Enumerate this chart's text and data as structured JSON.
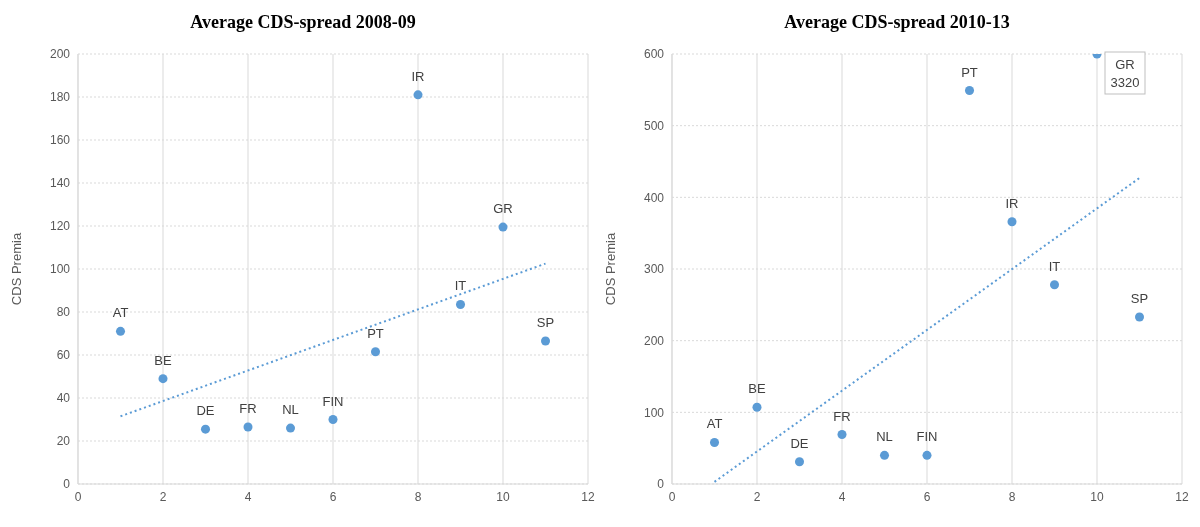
{
  "chart_data": [
    {
      "type": "scatter",
      "title": "Average CDS-spread 2008-09",
      "ylabel": "CDS Premia",
      "xlim": [
        0,
        12
      ],
      "xticks": [
        0,
        2,
        4,
        6,
        8,
        10,
        12
      ],
      "ylim": [
        0,
        200
      ],
      "yticks": [
        0,
        20,
        40,
        60,
        80,
        100,
        120,
        140,
        160,
        180,
        200
      ],
      "grid": true,
      "series": [
        {
          "color": "#5b9bd5",
          "marker": "circle",
          "x": [
            1,
            2,
            3,
            4,
            5,
            6,
            7,
            8,
            9,
            10,
            11
          ],
          "values": [
            71,
            49,
            25.5,
            26.5,
            26,
            30,
            61.5,
            181,
            83.5,
            119.5,
            66.5
          ]
        },
        {
          "type": "line",
          "color": "#5b9bd5",
          "marker": "none",
          "line_style": "dotted",
          "x": [
            1,
            11
          ],
          "values": [
            31.5,
            102.5
          ]
        }
      ],
      "annotations": [
        {
          "text": "AT",
          "x": 1,
          "y": 71
        },
        {
          "text": "BE",
          "x": 2,
          "y": 49
        },
        {
          "text": "DE",
          "x": 3,
          "y": 25.5
        },
        {
          "text": "FR",
          "x": 4,
          "y": 26.5
        },
        {
          "text": "NL",
          "x": 5,
          "y": 26
        },
        {
          "text": "FIN",
          "x": 6,
          "y": 30
        },
        {
          "text": "PT",
          "x": 7,
          "y": 61.5
        },
        {
          "text": "IR",
          "x": 8,
          "y": 181
        },
        {
          "text": "IT",
          "x": 9,
          "y": 83.5
        },
        {
          "text": "GR",
          "x": 10,
          "y": 119.5
        },
        {
          "text": "SP",
          "x": 11,
          "y": 66.5
        }
      ]
    },
    {
      "type": "scatter",
      "title": "Average CDS-spread 2010-13",
      "ylabel": "CDS Premia",
      "xlim": [
        0,
        12
      ],
      "xticks": [
        0,
        2,
        4,
        6,
        8,
        10,
        12
      ],
      "ylim": [
        0,
        600
      ],
      "yticks": [
        0,
        100,
        200,
        300,
        400,
        500,
        600
      ],
      "grid": true,
      "series": [
        {
          "color": "#5b9bd5",
          "marker": "circle",
          "x": [
            1,
            2,
            3,
            4,
            5,
            6,
            7,
            8,
            9,
            10,
            11
          ],
          "values": [
            58,
            107,
            31,
            69,
            40,
            40,
            549,
            366,
            278,
            600,
            233
          ]
        },
        {
          "type": "line",
          "color": "#5b9bd5",
          "marker": "none",
          "line_style": "dotted",
          "x": [
            1,
            11
          ],
          "values": [
            3,
            427
          ]
        }
      ],
      "annotations": [
        {
          "text": "AT",
          "x": 1,
          "y": 58
        },
        {
          "text": "BE",
          "x": 2,
          "y": 107
        },
        {
          "text": "DE",
          "x": 3,
          "y": 31
        },
        {
          "text": "FR",
          "x": 4,
          "y": 69
        },
        {
          "text": "NL",
          "x": 5,
          "y": 40
        },
        {
          "text": "FIN",
          "x": 6,
          "y": 40
        },
        {
          "text": "PT",
          "x": 7,
          "y": 549
        },
        {
          "text": "IR",
          "x": 8,
          "y": 366
        },
        {
          "text": "IT",
          "x": 9,
          "y": 278
        },
        {
          "text": "GR\n3320",
          "x": 10,
          "y": 600
        },
        {
          "text": "SP",
          "x": 11,
          "y": 233
        }
      ]
    }
  ]
}
